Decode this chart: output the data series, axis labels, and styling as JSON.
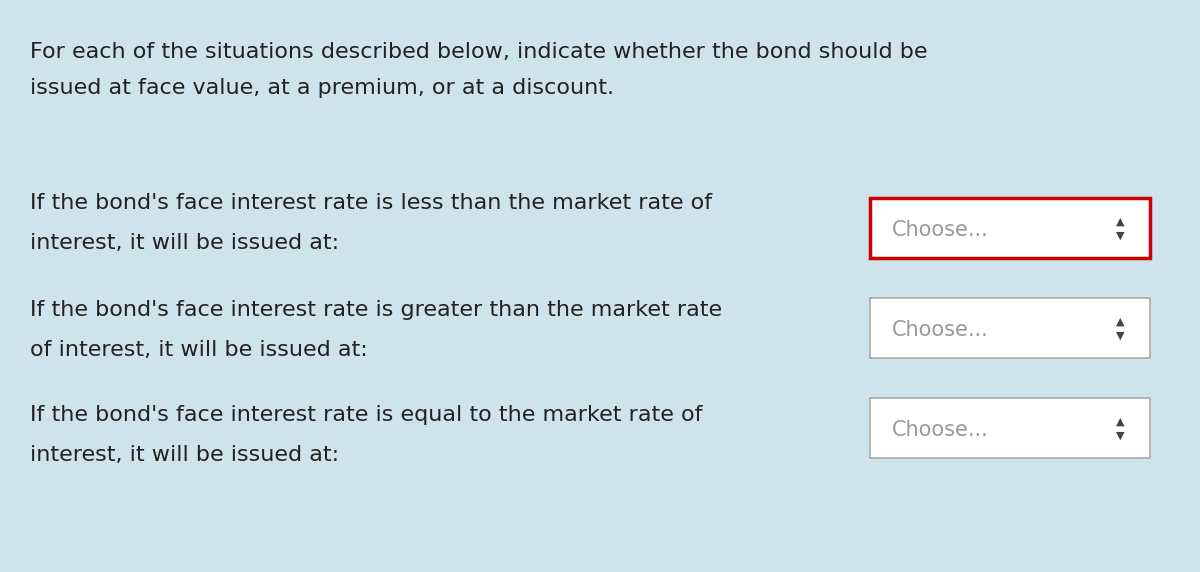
{
  "background_color": "#cee3ec",
  "intro_text_line1": "For each of the situations described below, indicate whether the bond should be",
  "intro_text_line2": "issued at face value, at a premium, or at a discount.",
  "rows": [
    {
      "text_line1": "If the bond's face interest rate is less than the market rate of",
      "text_line2": "interest, it will be issued at:",
      "dropdown_label": "Choose...",
      "border_color": "#cc0000",
      "border_width": 2.5,
      "highlighted": true
    },
    {
      "text_line1": "If the bond's face interest rate is greater than the market rate",
      "text_line2": "of interest, it will be issued at:",
      "dropdown_label": "Choose...",
      "border_color": "#aaaaaa",
      "border_width": 1.2,
      "highlighted": false
    },
    {
      "text_line1": "If the bond's face interest rate is equal to the market rate of",
      "text_line2": "interest, it will be issued at:",
      "dropdown_label": "Choose...",
      "border_color": "#aaaaaa",
      "border_width": 1.2,
      "highlighted": false
    }
  ],
  "text_color": "#222222",
  "dropdown_text_color": "#999999",
  "dropdown_bg_highlighted": "#ffffff",
  "dropdown_bg_normal": "#ffffff",
  "dropdown_arrow_color": "#444444",
  "font_size_intro": 16,
  "font_size_row": 16,
  "font_size_dropdown": 15
}
